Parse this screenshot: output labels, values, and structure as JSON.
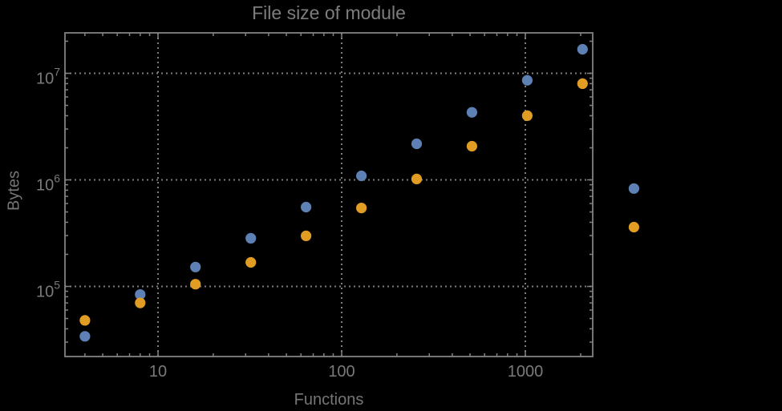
{
  "chart_data": {
    "type": "scatter",
    "title": "File size of module",
    "xlabel": "Functions",
    "ylabel": "Bytes",
    "x_scale": "log",
    "y_scale": "log",
    "grid": "dotted-major-decades",
    "legend": "none",
    "xlim": [
      3.2,
      2320
    ],
    "ylim": [
      22000,
      23500000
    ],
    "x": [
      4,
      8,
      16,
      32,
      64,
      128,
      256,
      512,
      1024,
      2048,
      3900
    ],
    "series": [
      {
        "name": "series-blue",
        "color": "#5e81b5",
        "values": [
          34000,
          84000,
          152000,
          283000,
          555000,
          1090000,
          2180000,
          4300000,
          8600000,
          16800000,
          830000
        ]
      },
      {
        "name": "series-orange",
        "color": "#e19c24",
        "values": [
          48000,
          70000,
          105000,
          168000,
          298000,
          545000,
          1020000,
          2070000,
          4000000,
          8000000,
          360000
        ]
      }
    ],
    "x_ticks": [
      10,
      100,
      1000
    ],
    "x_tick_labels": [
      "10",
      "100",
      "1000"
    ],
    "y_ticks": [
      100000,
      1000000,
      10000000
    ],
    "y_tick_labels": [
      {
        "base": "10",
        "exponent": "5"
      },
      {
        "base": "10",
        "exponent": "6"
      },
      {
        "base": "10",
        "exponent": "7"
      }
    ]
  },
  "colors": {
    "background": "#000000",
    "frame": "#828282",
    "grid": "#7b7b7b",
    "text": "#7a7a7a"
  }
}
